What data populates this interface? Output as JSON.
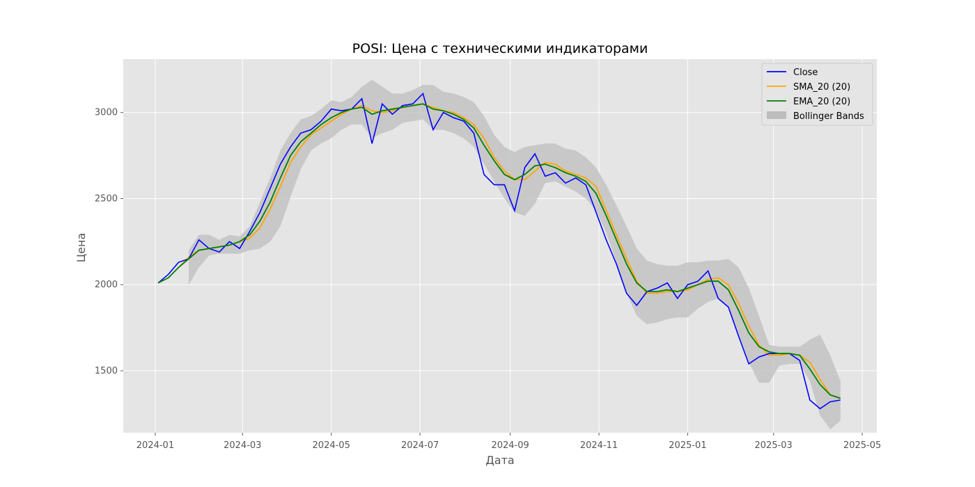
{
  "chart_data": {
    "type": "line",
    "title": "POSI: Цена с техническими индикаторами",
    "xlabel": "Дата",
    "ylabel": "Цена",
    "x_ticks": [
      "2024-01",
      "2024-03",
      "2024-05",
      "2024-07",
      "2024-09",
      "2024-11",
      "2025-01",
      "2025-03",
      "2025-05"
    ],
    "y_ticks": [
      1500,
      2000,
      2500,
      3000
    ],
    "xlim": [
      "2023-12-10",
      "2025-05-11"
    ],
    "ylim": [
      1140,
      3310
    ],
    "grid": true,
    "legend_position": "top-right",
    "colors": {
      "close": "#0000ff",
      "sma": "#ffa500",
      "ema": "#008000",
      "bands": "#bdbdbd",
      "plot_bg": "#e5e5e5",
      "grid": "#ffffff"
    },
    "dates": [
      "2024-01-03",
      "2024-01-10",
      "2024-01-17",
      "2024-01-24",
      "2024-01-31",
      "2024-02-07",
      "2024-02-14",
      "2024-02-21",
      "2024-02-28",
      "2024-03-06",
      "2024-03-13",
      "2024-03-20",
      "2024-03-27",
      "2024-04-03",
      "2024-04-10",
      "2024-04-17",
      "2024-04-24",
      "2024-05-01",
      "2024-05-08",
      "2024-05-15",
      "2024-05-22",
      "2024-05-29",
      "2024-06-05",
      "2024-06-12",
      "2024-06-19",
      "2024-06-26",
      "2024-07-03",
      "2024-07-10",
      "2024-07-17",
      "2024-07-24",
      "2024-07-31",
      "2024-08-07",
      "2024-08-14",
      "2024-08-21",
      "2024-08-28",
      "2024-09-04",
      "2024-09-11",
      "2024-09-18",
      "2024-09-25",
      "2024-10-02",
      "2024-10-09",
      "2024-10-16",
      "2024-10-23",
      "2024-10-30",
      "2024-11-06",
      "2024-11-13",
      "2024-11-20",
      "2024-11-27",
      "2024-12-04",
      "2024-12-11",
      "2024-12-18",
      "2024-12-25",
      "2025-01-01",
      "2025-01-08",
      "2025-01-15",
      "2025-01-22",
      "2025-01-29",
      "2025-02-05",
      "2025-02-12",
      "2025-02-19",
      "2025-02-26",
      "2025-03-05",
      "2025-03-12",
      "2025-03-19",
      "2025-03-26",
      "2025-04-02",
      "2025-04-09",
      "2025-04-16"
    ],
    "series": [
      {
        "name": "Close",
        "values": [
          2010,
          2060,
          2130,
          2150,
          2260,
          2210,
          2190,
          2250,
          2210,
          2310,
          2420,
          2560,
          2700,
          2800,
          2880,
          2900,
          2950,
          3020,
          3010,
          3020,
          3080,
          2820,
          3050,
          2990,
          3040,
          3050,
          3110,
          2900,
          3000,
          2970,
          2950,
          2880,
          2640,
          2580,
          2580,
          2430,
          2680,
          2760,
          2630,
          2650,
          2590,
          2620,
          2580,
          2420,
          2260,
          2120,
          1950,
          1880,
          1960,
          1980,
          2010,
          1920,
          2000,
          2020,
          2080,
          1920,
          1870,
          1700,
          1540,
          1580,
          1600,
          1600,
          1600,
          1560,
          1330,
          1280,
          1320,
          1330
        ]
      },
      {
        "name": "SMA_20 (20)",
        "values": [
          null,
          null,
          2100,
          2160,
          2200,
          2210,
          2220,
          2230,
          2250,
          2270,
          2330,
          2440,
          2570,
          2710,
          2800,
          2870,
          2910,
          2950,
          2990,
          3020,
          3040,
          3010,
          3000,
          3010,
          3030,
          3040,
          3050,
          3030,
          3010,
          3000,
          2970,
          2930,
          2850,
          2740,
          2660,
          2610,
          2610,
          2660,
          2710,
          2700,
          2660,
          2640,
          2620,
          2570,
          2430,
          2290,
          2150,
          2020,
          1950,
          1950,
          1960,
          1960,
          1970,
          2000,
          2030,
          2040,
          2000,
          1890,
          1760,
          1650,
          1590,
          1590,
          1600,
          1590,
          1550,
          1450,
          1360,
          1340
        ]
      },
      {
        "name": "EMA_20 (20)",
        "values": [
          2010,
          2040,
          2100,
          2150,
          2200,
          2210,
          2220,
          2230,
          2250,
          2290,
          2370,
          2480,
          2620,
          2750,
          2830,
          2880,
          2930,
          2970,
          3000,
          3020,
          3030,
          2990,
          3010,
          3020,
          3030,
          3040,
          3050,
          3020,
          3010,
          2990,
          2960,
          2910,
          2810,
          2720,
          2640,
          2610,
          2640,
          2690,
          2700,
          2680,
          2650,
          2630,
          2600,
          2530,
          2400,
          2260,
          2120,
          2010,
          1960,
          1960,
          1970,
          1960,
          1980,
          2000,
          2020,
          2020,
          1970,
          1850,
          1720,
          1640,
          1610,
          1600,
          1600,
          1590,
          1510,
          1420,
          1360,
          1340
        ]
      },
      {
        "name": "Bollinger Bands",
        "upper": [
          null,
          null,
          null,
          2200,
          2290,
          2290,
          2260,
          2290,
          2280,
          2340,
          2480,
          2620,
          2780,
          2880,
          2960,
          2980,
          3020,
          3070,
          3060,
          3090,
          3150,
          3190,
          3150,
          3110,
          3110,
          3130,
          3160,
          3160,
          3120,
          3110,
          3090,
          3060,
          2980,
          2870,
          2800,
          2770,
          2800,
          2810,
          2820,
          2820,
          2790,
          2780,
          2740,
          2680,
          2580,
          2460,
          2340,
          2210,
          2140,
          2120,
          2110,
          2110,
          2130,
          2130,
          2140,
          2140,
          2150,
          2100,
          1980,
          1820,
          1650,
          1640,
          1640,
          1640,
          1680,
          1710,
          1590,
          1440
        ],
        "lower": [
          null,
          null,
          null,
          2000,
          2100,
          2170,
          2180,
          2180,
          2180,
          2200,
          2210,
          2250,
          2340,
          2510,
          2670,
          2780,
          2820,
          2850,
          2900,
          2930,
          2930,
          2850,
          2880,
          2900,
          2940,
          2950,
          2960,
          2900,
          2900,
          2880,
          2850,
          2800,
          2700,
          2600,
          2500,
          2420,
          2400,
          2470,
          2590,
          2600,
          2570,
          2540,
          2500,
          2430,
          2300,
          2130,
          1950,
          1820,
          1770,
          1780,
          1800,
          1810,
          1810,
          1860,
          1900,
          1920,
          1870,
          1710,
          1550,
          1430,
          1430,
          1530,
          1540,
          1540,
          1440,
          1240,
          1160,
          1210
        ]
      }
    ]
  }
}
